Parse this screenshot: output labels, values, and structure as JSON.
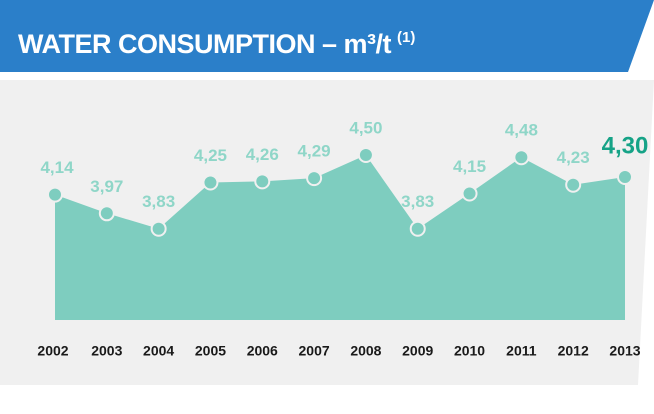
{
  "chart_data": {
    "type": "area",
    "title": "WATER CONSUMPTION – m³/t",
    "title_note": "(1)",
    "categories": [
      "2002",
      "2003",
      "2004",
      "2005",
      "2006",
      "2007",
      "2008",
      "2009",
      "2010",
      "2011",
      "2012",
      "2013"
    ],
    "values": [
      4.14,
      3.97,
      3.83,
      4.25,
      4.26,
      4.29,
      4.5,
      3.83,
      4.15,
      4.48,
      4.23,
      4.3
    ],
    "value_labels": [
      "4,14",
      "3,97",
      "3,83",
      "4,25",
      "4,26",
      "4,29",
      "4,50",
      "3,83",
      "4,15",
      "4,48",
      "4,23",
      "4,30"
    ],
    "color": "#7ecdbf",
    "ylim": [
      3.0,
      4.6
    ]
  }
}
